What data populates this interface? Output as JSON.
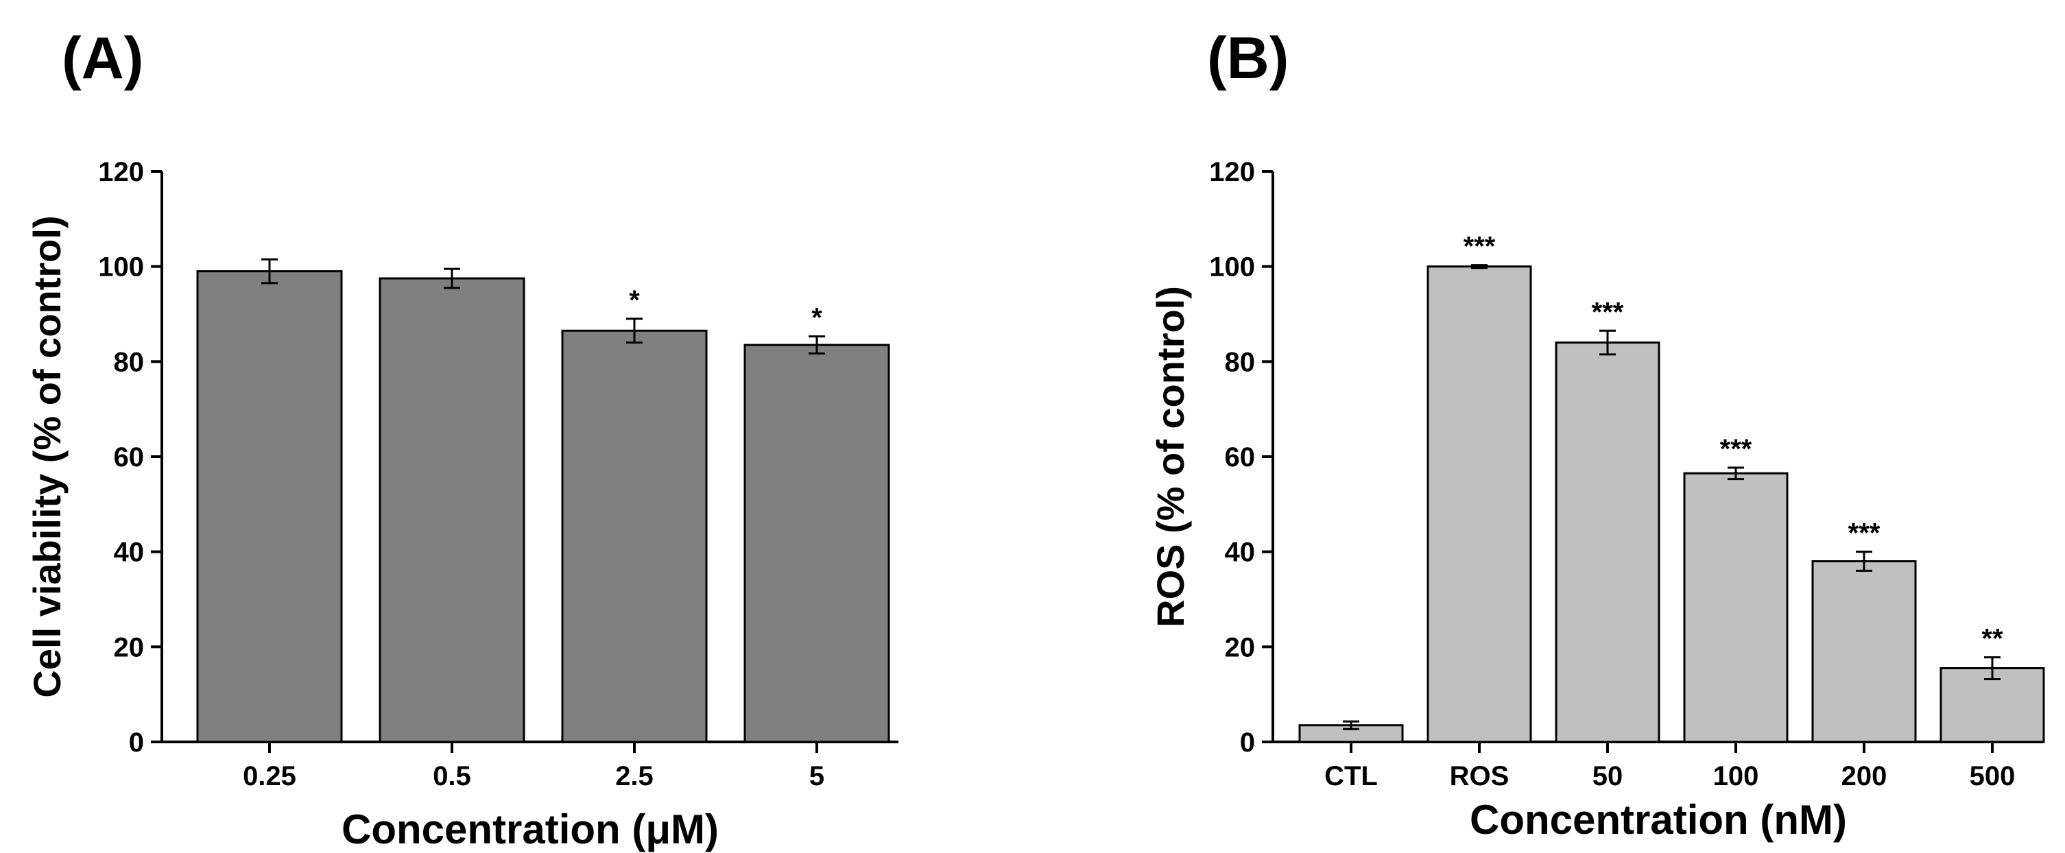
{
  "chart_data": [
    {
      "type": "bar",
      "panel_label": "(A)",
      "categories": [
        "0.25",
        "0.5",
        "2.5",
        "5"
      ],
      "values": [
        99,
        97.5,
        86.5,
        83.5
      ],
      "errors": [
        2.5,
        2.0,
        2.5,
        1.8
      ],
      "significance": [
        "",
        "",
        "*",
        "*"
      ],
      "xlabel": "Concentration (μM)",
      "ylabel": "Cell viability (% of control)",
      "ylim": [
        0,
        120
      ],
      "yticks": [
        0,
        20,
        40,
        60,
        80,
        100,
        120
      ],
      "bar_color": "#808080",
      "grid": false
    },
    {
      "type": "bar",
      "panel_label": "(B)",
      "categories": [
        "CTL",
        "ROS",
        "50",
        "100",
        "200",
        "500"
      ],
      "values": [
        3.5,
        100,
        84,
        56.5,
        38,
        15.5
      ],
      "errors": [
        0.8,
        0.3,
        2.5,
        1.2,
        2.0,
        2.3
      ],
      "significance": [
        "",
        "***",
        "***",
        "***",
        "***",
        "**"
      ],
      "xlabel": "Concentration (nM)",
      "ylabel": "ROS (% of control)",
      "ylim": [
        0,
        120
      ],
      "yticks": [
        0,
        20,
        40,
        60,
        80,
        100,
        120
      ],
      "bar_color": "#c0c0c0",
      "grid": false
    }
  ]
}
